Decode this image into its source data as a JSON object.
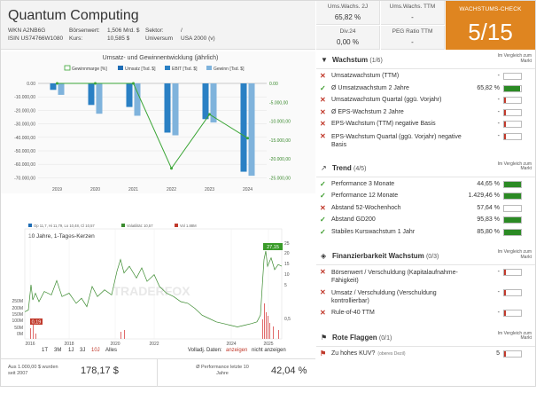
{
  "header": {
    "title": "Quantum Computing",
    "wkn_label": "WKN A2NB6G",
    "isin_label": "ISIN US74766W1080",
    "mcap_key": "Börsenwert:",
    "mcap_val": "1,506 Mrd. $",
    "price_key": "Kurs:",
    "price_val": "10,585 $",
    "sector_key": "Sektor:",
    "sector_val": "/",
    "universe_key": "Universum",
    "universe_val": "USA 2000 (v)"
  },
  "metrics": [
    {
      "label": "Ums.Wachs. 2J",
      "value": "65,82 %"
    },
    {
      "label": "Ums.Wachs. TTM",
      "value": "-"
    },
    {
      "label": "Div.24",
      "value": "0,00 %"
    },
    {
      "label": "PEG Ratio TTM",
      "value": "-"
    }
  ],
  "check": {
    "label": "WACHSTUMS-CHECK",
    "score": "5/15"
  },
  "chart1": {
    "title": "Umsatz- und Gewinnentwicklung (jährlich)",
    "legend": [
      "Gewinnmarge [%]",
      "Umsatz [Tsd. $]",
      "EBIT [Tsd. $]",
      "Gewinn [Tsd. $]"
    ],
    "left_ticks": [
      "0.00",
      "-10.000,00",
      "-20.000,00",
      "-30.000,00",
      "-40.000,00",
      "-50.000,00",
      "-60.000,00",
      "-70.000,00"
    ],
    "right_ticks": [
      "0.00",
      "-5.000,00",
      "-10.000,00",
      "-15.000,00",
      "-20.000,00",
      "-25.000,00"
    ],
    "years": [
      "2019",
      "2020",
      "2021",
      "2022",
      "2023",
      "2024"
    ],
    "colors": {
      "umsatz": "#1f6db5",
      "ebit": "#2a80c4",
      "gewinn": "#7fb3dc",
      "marge": "#3aa535"
    }
  },
  "chart_data": {
    "type": "bar",
    "title": "Umsatz- und Gewinnentwicklung (jährlich)",
    "categories": [
      "2019",
      "2020",
      "2021",
      "2022",
      "2023",
      "2024"
    ],
    "ylim": [
      -75000,
      5000
    ],
    "series": [
      {
        "name": "EBIT [Tsd. $]",
        "values": [
          -4800,
          -16000,
          -17500,
          -36500,
          -26500,
          -65500
        ]
      },
      {
        "name": "Gewinn [Tsd. $]",
        "values": [
          -8500,
          -22500,
          -24000,
          -38500,
          -29000,
          -68500
        ]
      },
      {
        "name": "Gewinnmarge [%]",
        "axis": "right",
        "values": [
          0,
          0,
          0,
          -22500,
          -8200,
          -14500
        ]
      }
    ]
  },
  "chart2": {
    "legend_items": [
      "Op 11,7, Hi 11,79, Lo 10,48, Cl 10,57",
      "Volatilität: 10,57",
      "Vol 1.88M"
    ],
    "subtitle": "10 Jahre, 1-Tages-Kerzen",
    "price_ticks": [
      "25",
      "20",
      "15",
      "10",
      "5",
      "0,5"
    ],
    "vol_ticks": [
      "250M",
      "200M",
      "150M",
      "100M",
      "50M",
      "0M"
    ],
    "x_ticks": [
      "2016",
      "2018",
      "2020",
      "2022",
      "2024",
      "2025"
    ],
    "last_price_tag": "27,15",
    "low_tag": "0,19",
    "watermark": "TRADERFOX"
  },
  "ranges": {
    "items": [
      "1T",
      "3M",
      "1J",
      "3J",
      "10J",
      "Alles"
    ],
    "adjusted_label": "Volladj. Daten:",
    "show": "anzeigen",
    "hide": "nicht anzeigen"
  },
  "bottom": {
    "invest_label": "Aus 1.000,00 $ wurden seit 2007",
    "invest_value": "178,17 $",
    "perf_label": "Ø Performance letzte 10 Jahre",
    "perf_value": "42,04 %"
  },
  "compare_label": "Im Vergleich zum Markt",
  "sections": [
    {
      "icon": "filter-icon",
      "title": "Wachstum",
      "count": "(1/6)",
      "rows": [
        {
          "ok": false,
          "label": "Umsatzwachstum (TTM)",
          "value": "-",
          "fill": 0,
          "color": "red"
        },
        {
          "ok": true,
          "label": "Ø Umsatzwachstum 2 Jahre",
          "value": "65,82 %",
          "fill": 0.95,
          "color": "green"
        },
        {
          "ok": false,
          "label": "Umsatzwachstum Quartal (ggü. Vorjahr)",
          "value": "-",
          "fill": 0.12,
          "color": "red"
        },
        {
          "ok": false,
          "label": "Ø EPS-Wachstum 2 Jahre",
          "value": "-",
          "fill": 0.12,
          "color": "red"
        },
        {
          "ok": false,
          "label": "EPS-Wachstum (TTM) negative Basis",
          "value": "-",
          "fill": 0.12,
          "color": "red"
        },
        {
          "ok": false,
          "label": "EPS-Wachstum Quartal (ggü. Vorjahr) negative Basis",
          "value": "-",
          "fill": 0.12,
          "color": "red",
          "two": true
        }
      ]
    },
    {
      "icon": "chart-icon",
      "title": "Trend",
      "count": "(4/5)",
      "rows": [
        {
          "ok": true,
          "label": "Performance 3 Monate",
          "value": "44,65 %",
          "fill": 1,
          "color": "green"
        },
        {
          "ok": true,
          "label": "Performance 12 Monate",
          "value": "1.429,46 %",
          "fill": 1,
          "color": "green"
        },
        {
          "ok": false,
          "label": "Abstand 52-Wochenhoch",
          "value": "57,64 %",
          "fill": 0,
          "color": "red"
        },
        {
          "ok": true,
          "label": "Abstand GD200",
          "value": "95,83 %",
          "fill": 1,
          "color": "green"
        },
        {
          "ok": true,
          "label": "Stabiles Kurswachstum 1 Jahr",
          "value": "85,80 %",
          "fill": 1,
          "color": "green"
        }
      ]
    },
    {
      "icon": "shield-icon",
      "title": "Finanzierbarkeit Wachstum",
      "count": "(0/3)",
      "rows": [
        {
          "ok": false,
          "label": "Börsenwert / Verschuldung (Kapitalaufnahme-Fähigkeit)",
          "value": "-",
          "fill": 0.12,
          "color": "red",
          "two": true
        },
        {
          "ok": false,
          "label": "Umsatz / Verschuldung (Verschuldung kontrollierbar)",
          "value": "-",
          "fill": 0.12,
          "color": "red",
          "two": true
        },
        {
          "ok": false,
          "label": "Rule-of-40 TTM",
          "value": "-",
          "fill": 0.12,
          "color": "red"
        }
      ]
    },
    {
      "icon": "flag-icon",
      "title": "Rote Flaggen",
      "count": "(0/1)",
      "rows": [
        {
          "ok": false,
          "flag": true,
          "label": "Zu hohes KUV?",
          "label_suffix": "(oberes Dezil)",
          "value": "5",
          "fill": 0.12,
          "color": "red"
        }
      ]
    }
  ]
}
